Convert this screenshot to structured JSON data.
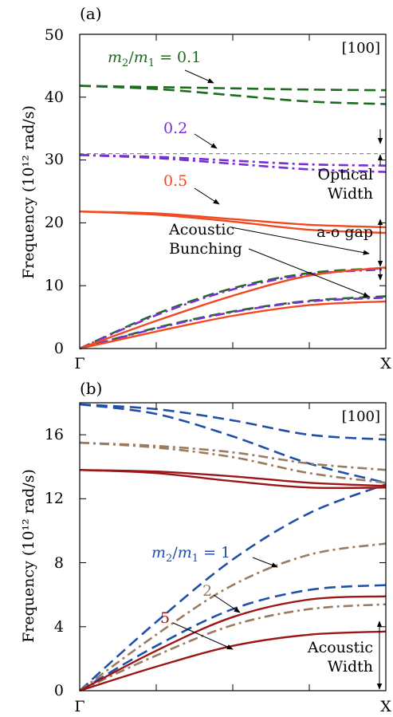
{
  "figure": {
    "panels": [
      {
        "id": "a",
        "label": "(a)",
        "direction": "[100]",
        "ylabel": "Frequency (10¹² rad/s)",
        "yticks": [
          "0",
          "10",
          "20",
          "30",
          "40",
          "50"
        ],
        "xticks": [
          "Γ",
          "X"
        ],
        "annotations": {
          "ratio_prefix": "m",
          "ratio_sub2": "2",
          "ratio_slash": "/",
          "ratio_sub1": "1",
          "ratio_value": " = 0.1",
          "v02": "0.2",
          "v05": "0.5",
          "optical": "Optical",
          "width": "Width",
          "acoustic": "Acoustic",
          "bunching": "Bunching",
          "gap": "a-o gap"
        }
      },
      {
        "id": "b",
        "label": "(b)",
        "direction": "[100]",
        "ylabel": "Frequency (10¹² rad/s)",
        "yticks": [
          "0",
          "4",
          "8",
          "12",
          "16"
        ],
        "xticks": [
          "Γ",
          "X"
        ],
        "annotations": {
          "ratio_prefix": "m",
          "ratio_sub2": "2",
          "ratio_slash": "/",
          "ratio_sub1": "1",
          "ratio_value": " = 1",
          "v2": "2",
          "v5": "5",
          "acoustic": "Acoustic",
          "width": "Width"
        }
      }
    ]
  },
  "colors": {
    "green": "#1e6b1e",
    "purple": "#7a2fd6",
    "orange": "#f04a23",
    "blue": "#1f4fa8",
    "tan": "#9a7b5f",
    "darkred": "#9b1616",
    "gray": "#7f7f7f"
  },
  "chart_data": [
    {
      "type": "line",
      "panel": "a",
      "x_categories": [
        "Γ",
        "X"
      ],
      "x_range": [
        0,
        1
      ],
      "ylim": [
        0,
        50
      ],
      "series": [
        {
          "name": "m2/m1 = 0.1",
          "style": "dashed",
          "color": "green",
          "branches": [
            {
              "x": [
                0,
                0.25,
                0.5,
                0.75,
                1.0
              ],
              "y": [
                0,
                3.3,
                5.9,
                7.6,
                8.3
              ]
            },
            {
              "x": [
                0,
                0.25,
                0.5,
                0.75,
                1.0
              ],
              "y": [
                0,
                5.5,
                9.6,
                12.0,
                12.8
              ]
            },
            {
              "x": [
                0,
                0.25,
                0.5,
                0.75,
                1.0
              ],
              "y": [
                41.8,
                41.6,
                41.4,
                41.2,
                41.1
              ]
            },
            {
              "x": [
                0,
                0.25,
                0.5,
                0.75,
                1.0
              ],
              "y": [
                41.8,
                41.3,
                40.3,
                39.3,
                38.9
              ]
            }
          ]
        },
        {
          "name": "0.2",
          "style": "dashdot",
          "color": "purple",
          "branches": [
            {
              "x": [
                0,
                0.25,
                0.5,
                0.75,
                1.0
              ],
              "y": [
                0,
                3.2,
                5.8,
                7.5,
                8.1
              ]
            },
            {
              "x": [
                0,
                0.25,
                0.5,
                0.75,
                1.0
              ],
              "y": [
                0,
                5.3,
                9.4,
                11.8,
                12.6
              ]
            },
            {
              "x": [
                0,
                0.25,
                0.5,
                0.75,
                1.0
              ],
              "y": [
                30.8,
                30.5,
                29.9,
                29.3,
                29.1
              ]
            },
            {
              "x": [
                0,
                0.25,
                0.5,
                0.75,
                1.0
              ],
              "y": [
                30.8,
                30.3,
                29.4,
                28.5,
                28.1
              ]
            }
          ]
        },
        {
          "name": "0.5",
          "style": "solid",
          "color": "orange",
          "branches": [
            {
              "x": [
                0,
                0.25,
                0.5,
                0.75,
                1.0
              ],
              "y": [
                0,
                2.7,
                5.2,
                6.9,
                7.5
              ]
            },
            {
              "x": [
                0,
                0.25,
                0.5,
                0.75,
                1.0
              ],
              "y": [
                0,
                4.4,
                8.4,
                11.6,
                12.9
              ]
            },
            {
              "x": [
                0,
                0.25,
                0.5,
                0.75,
                1.0
              ],
              "y": [
                21.8,
                21.5,
                20.6,
                19.7,
                19.3
              ]
            },
            {
              "x": [
                0,
                0.25,
                0.5,
                0.75,
                1.0
              ],
              "y": [
                21.8,
                21.3,
                20.2,
                18.9,
                18.4
              ]
            }
          ]
        },
        {
          "name": "",
          "style": "dotted",
          "color": "gray",
          "branches": [
            {
              "x": [
                0,
                1.0
              ],
              "y": [
                31.0,
                31.0
              ]
            }
          ]
        }
      ]
    },
    {
      "type": "line",
      "panel": "b",
      "x_categories": [
        "Γ",
        "X"
      ],
      "x_range": [
        0,
        1
      ],
      "ylim": [
        0,
        18
      ],
      "series": [
        {
          "name": "m2/m1 = 1",
          "style": "dashed",
          "color": "blue",
          "branches": [
            {
              "x": [
                0,
                0.25,
                0.5,
                0.75,
                1.0
              ],
              "y": [
                0,
                2.8,
                5.1,
                6.3,
                6.6
              ]
            },
            {
              "x": [
                0,
                0.25,
                0.5,
                0.75,
                1.0
              ],
              "y": [
                0,
                4.3,
                8.2,
                11.1,
                12.9
              ]
            },
            {
              "x": [
                0,
                0.25,
                0.5,
                0.75,
                1.0
              ],
              "y": [
                17.9,
                17.3,
                15.9,
                14.2,
                13.0
              ]
            },
            {
              "x": [
                0,
                0.25,
                0.5,
                0.75,
                1.0
              ],
              "y": [
                17.9,
                17.6,
                16.9,
                16.0,
                15.7
              ]
            }
          ]
        },
        {
          "name": "2",
          "style": "dashdot",
          "color": "tan",
          "branches": [
            {
              "x": [
                0,
                0.25,
                0.5,
                0.75,
                1.0
              ],
              "y": [
                0,
                2.2,
                4.1,
                5.1,
                5.4
              ]
            },
            {
              "x": [
                0,
                0.25,
                0.5,
                0.75,
                1.0
              ],
              "y": [
                0,
                3.5,
                6.6,
                8.5,
                9.2
              ]
            },
            {
              "x": [
                0,
                0.25,
                0.5,
                0.75,
                1.0
              ],
              "y": [
                15.5,
                15.2,
                14.6,
                13.6,
                13.0
              ]
            },
            {
              "x": [
                0,
                0.25,
                0.5,
                0.75,
                1.0
              ],
              "y": [
                15.5,
                15.3,
                14.9,
                14.2,
                13.8
              ]
            }
          ]
        },
        {
          "name": "5",
          "style": "solid",
          "color": "darkred",
          "branches": [
            {
              "x": [
                0,
                0.25,
                0.5,
                0.75,
                1.0
              ],
              "y": [
                0,
                1.5,
                2.8,
                3.5,
                3.7
              ]
            },
            {
              "x": [
                0,
                0.25,
                0.5,
                0.75,
                1.0
              ],
              "y": [
                0,
                2.5,
                4.6,
                5.7,
                5.9
              ]
            },
            {
              "x": [
                0,
                0.25,
                0.5,
                0.75,
                1.0
              ],
              "y": [
                13.8,
                13.6,
                13.1,
                12.7,
                12.7
              ]
            },
            {
              "x": [
                0,
                0.25,
                0.5,
                0.75,
                1.0
              ],
              "y": [
                13.8,
                13.7,
                13.4,
                13.0,
                12.8
              ]
            }
          ]
        }
      ]
    }
  ]
}
